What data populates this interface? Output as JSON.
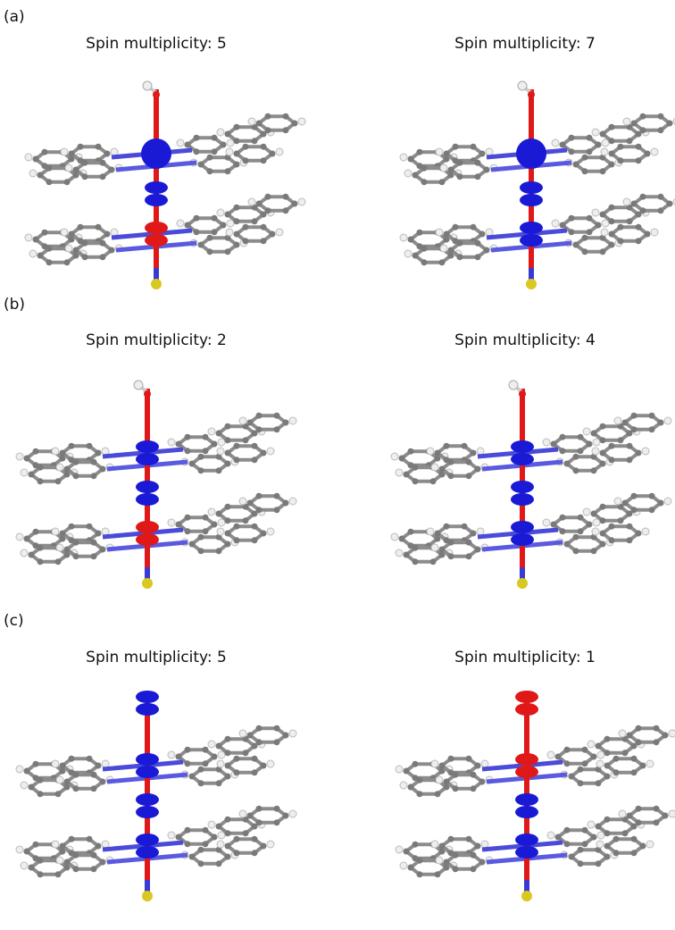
{
  "panels": [
    {
      "label": "(a)",
      "items": [
        {
          "title": "Spin multiplicity: 5"
        },
        {
          "title": "Spin multiplicity: 7"
        }
      ]
    },
    {
      "label": "(b)",
      "items": [
        {
          "title": "Spin multiplicity: 2"
        },
        {
          "title": "Spin multiplicity: 4"
        }
      ]
    },
    {
      "label": "(c)",
      "items": [
        {
          "title": "Spin multiplicity: 5"
        },
        {
          "title": "Spin multiplicity: 1"
        }
      ]
    }
  ]
}
